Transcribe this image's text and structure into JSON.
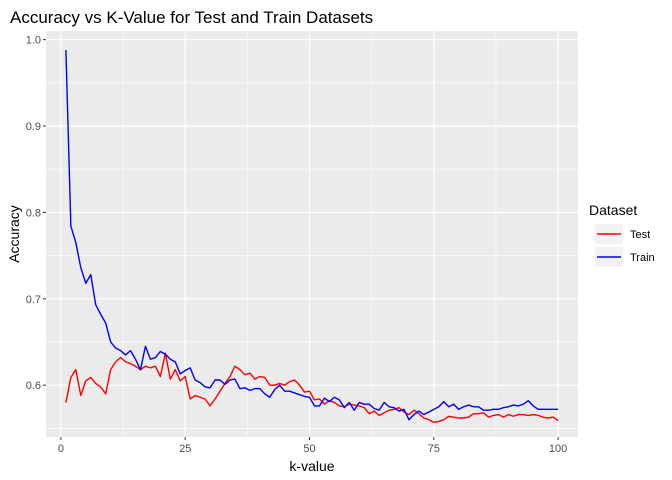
{
  "chart_data": {
    "type": "line",
    "title": "Accuracy vs K-Value for Test and Train Datasets",
    "xlabel": "k-value",
    "ylabel": "Accuracy",
    "xlim": [
      -3,
      104
    ],
    "ylim": [
      0.54,
      1.01
    ],
    "x_ticks": [
      0,
      25,
      50,
      75,
      100
    ],
    "x_tick_labels": [
      "0",
      "25",
      "50",
      "75",
      "100"
    ],
    "y_ticks": [
      0.6,
      0.7,
      0.8,
      0.9,
      1.0
    ],
    "y_tick_labels": [
      "0.6",
      "0.7",
      "0.8",
      "0.9",
      "1.0"
    ],
    "grid": true,
    "legend": {
      "title": "Dataset",
      "placement": "right",
      "entries": [
        "Test",
        "Train"
      ]
    },
    "colors": {
      "panel": "#ebebeb",
      "grid": "#ffffff",
      "Test": "#ff0000",
      "Train": "#0000ff"
    },
    "series": [
      {
        "name": "Test",
        "color": "#ff0000",
        "x": [
          1,
          2,
          3,
          4,
          5,
          6,
          7,
          8,
          9,
          10,
          11,
          12,
          13,
          14,
          15,
          16,
          17,
          18,
          19,
          20,
          21,
          22,
          23,
          24,
          25,
          26,
          27,
          28,
          29,
          30,
          31,
          32,
          33,
          34,
          35,
          36,
          37,
          38,
          39,
          40,
          41,
          42,
          43,
          44,
          45,
          46,
          47,
          48,
          49,
          50,
          51,
          52,
          53,
          54,
          55,
          56,
          57,
          58,
          59,
          60,
          61,
          62,
          63,
          64,
          65,
          66,
          67,
          68,
          69,
          70,
          71,
          72,
          73,
          74,
          75,
          76,
          77,
          78,
          79,
          80,
          81,
          82,
          83,
          84,
          85,
          86,
          87,
          88,
          89,
          90,
          91,
          92,
          93,
          94,
          95,
          96,
          97,
          98,
          99,
          100
        ],
        "y": [
          0.58,
          0.609,
          0.618,
          0.588,
          0.605,
          0.609,
          0.602,
          0.598,
          0.59,
          0.618,
          0.627,
          0.632,
          0.627,
          0.625,
          0.622,
          0.618,
          0.622,
          0.62,
          0.622,
          0.61,
          0.637,
          0.607,
          0.618,
          0.605,
          0.61,
          0.584,
          0.588,
          0.586,
          0.584,
          0.576,
          0.584,
          0.593,
          0.602,
          0.61,
          0.622,
          0.618,
          0.612,
          0.614,
          0.607,
          0.61,
          0.609,
          0.6,
          0.6,
          0.602,
          0.6,
          0.604,
          0.606,
          0.6,
          0.592,
          0.593,
          0.583,
          0.584,
          0.578,
          0.582,
          0.58,
          0.576,
          0.575,
          0.578,
          0.577,
          0.576,
          0.574,
          0.567,
          0.57,
          0.565,
          0.568,
          0.571,
          0.572,
          0.574,
          0.569,
          0.566,
          0.571,
          0.567,
          0.562,
          0.56,
          0.557,
          0.558,
          0.56,
          0.564,
          0.563,
          0.562,
          0.562,
          0.563,
          0.567,
          0.567,
          0.568,
          0.563,
          0.565,
          0.566,
          0.563,
          0.566,
          0.564,
          0.566,
          0.566,
          0.565,
          0.566,
          0.565,
          0.563,
          0.562,
          0.563,
          0.559
        ]
      },
      {
        "name": "Train",
        "color": "#0000ff",
        "x": [
          1,
          2,
          3,
          4,
          5,
          6,
          7,
          8,
          9,
          10,
          11,
          12,
          13,
          14,
          15,
          16,
          17,
          18,
          19,
          20,
          21,
          22,
          23,
          24,
          25,
          26,
          27,
          28,
          29,
          30,
          31,
          32,
          33,
          34,
          35,
          36,
          37,
          38,
          39,
          40,
          41,
          42,
          43,
          44,
          45,
          46,
          47,
          48,
          49,
          50,
          51,
          52,
          53,
          54,
          55,
          56,
          57,
          58,
          59,
          60,
          61,
          62,
          63,
          64,
          65,
          66,
          67,
          68,
          69,
          70,
          71,
          72,
          73,
          74,
          75,
          76,
          77,
          78,
          79,
          80,
          81,
          82,
          83,
          84,
          85,
          86,
          87,
          88,
          89,
          90,
          91,
          92,
          93,
          94,
          95,
          96,
          97,
          98,
          99,
          100
        ],
        "y": [
          0.988,
          0.784,
          0.765,
          0.736,
          0.718,
          0.728,
          0.693,
          0.682,
          0.672,
          0.65,
          0.643,
          0.64,
          0.635,
          0.64,
          0.63,
          0.618,
          0.645,
          0.63,
          0.632,
          0.639,
          0.636,
          0.63,
          0.627,
          0.613,
          0.617,
          0.62,
          0.606,
          0.603,
          0.598,
          0.597,
          0.606,
          0.606,
          0.601,
          0.606,
          0.607,
          0.596,
          0.597,
          0.594,
          0.596,
          0.596,
          0.59,
          0.586,
          0.595,
          0.6,
          0.593,
          0.593,
          0.591,
          0.589,
          0.587,
          0.586,
          0.576,
          0.576,
          0.585,
          0.581,
          0.586,
          0.583,
          0.574,
          0.58,
          0.571,
          0.58,
          0.578,
          0.578,
          0.573,
          0.571,
          0.58,
          0.575,
          0.574,
          0.57,
          0.572,
          0.56,
          0.566,
          0.57,
          0.566,
          0.569,
          0.572,
          0.575,
          0.581,
          0.575,
          0.578,
          0.572,
          0.575,
          0.577,
          0.575,
          0.575,
          0.571,
          0.571,
          0.572,
          0.572,
          0.574,
          0.575,
          0.577,
          0.576,
          0.578,
          0.582,
          0.576,
          0.572,
          0.572,
          0.572,
          0.572,
          0.572
        ]
      }
    ]
  }
}
